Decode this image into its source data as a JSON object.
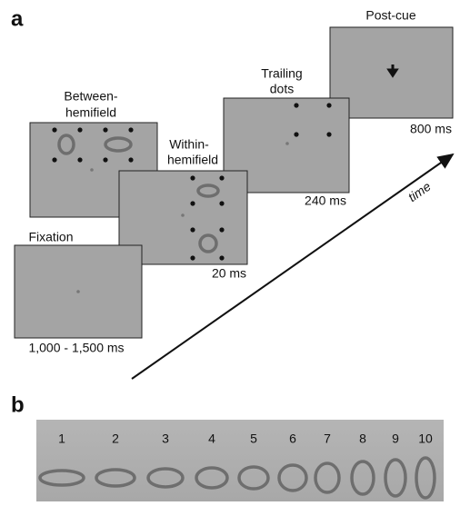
{
  "panel_a": {
    "label": "a",
    "fixation": {
      "title": "Fixation",
      "duration": "1,000 - 1,500 ms"
    },
    "between": {
      "title_lines": [
        "Between-",
        "hemifield"
      ]
    },
    "within": {
      "title_lines": [
        "Within-",
        "hemifield"
      ],
      "duration": "20 ms"
    },
    "trailing": {
      "title_lines": [
        "Trailing",
        "dots"
      ],
      "duration": "240 ms"
    },
    "postcue": {
      "title": "Post-cue",
      "duration": "800 ms"
    },
    "axis_label": "time"
  },
  "panel_b": {
    "label": "b",
    "numbers": [
      "1",
      "2",
      "3",
      "4",
      "5",
      "6",
      "7",
      "8",
      "9",
      "10"
    ]
  }
}
